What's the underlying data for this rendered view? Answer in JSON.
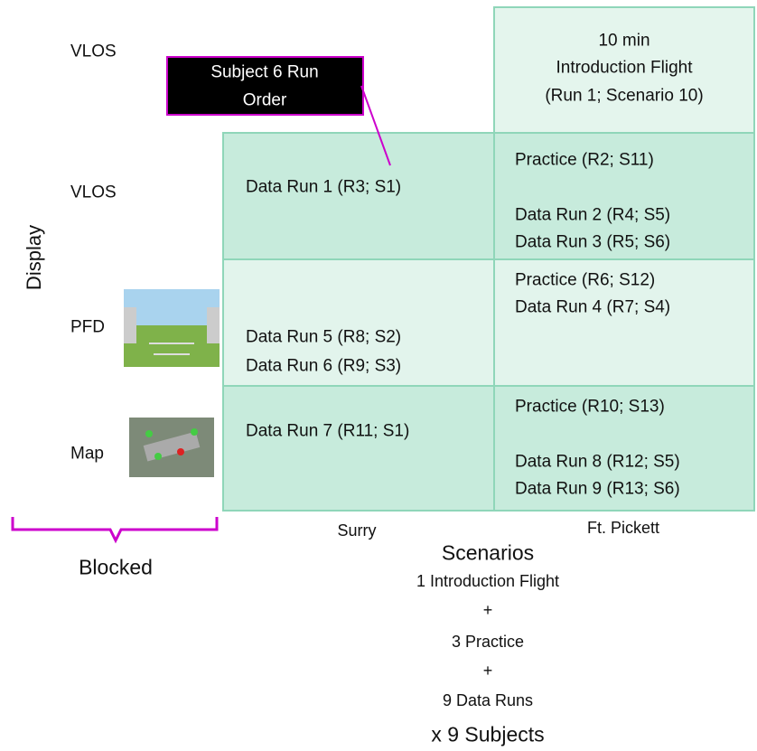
{
  "axis_label": "Display",
  "row_labels": [
    "VLOS",
    "VLOS",
    "PFD",
    "Map"
  ],
  "callout": [
    "Subject 6 Run",
    "Order"
  ],
  "intro_cell": [
    "10 min",
    "Introduction Flight",
    "(Run 1; Scenario 10)"
  ],
  "cells": {
    "surry": [
      [
        "Data Run 1 (R3; S1)"
      ],
      [
        "Data Run 5 (R8; S2)",
        "Data Run 6 (R9; S3)"
      ],
      [
        "Data Run 7 (R11; S1)"
      ]
    ],
    "ft_pickett": [
      [
        "Practice (R2; S11)",
        "Data Run 2 (R4; S5)",
        "Data Run 3 (R5; S6)"
      ],
      [
        "Practice (R6; S12)",
        "Data Run 4 (R7; S4)"
      ],
      [
        "Practice (R10; S13)",
        "Data Run 8 (R12; S5)",
        "Data Run 9 (R13; S6)"
      ]
    ]
  },
  "columns": [
    "Surry",
    "Ft. Pickett"
  ],
  "blocked": "Blocked",
  "scenarios": {
    "title": "Scenarios",
    "lines": [
      "1 Introduction Flight",
      "+",
      "3 Practice",
      "+",
      "9 Data Runs"
    ],
    "footer": "x 9 Subjects"
  }
}
